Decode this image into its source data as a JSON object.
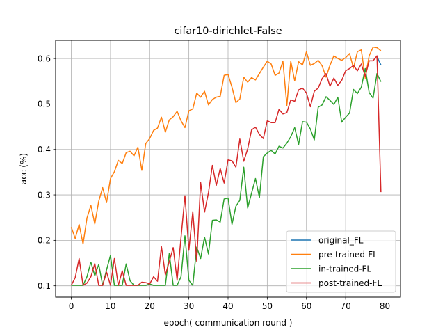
{
  "chart_data": {
    "type": "line",
    "title": "cifar10-dirichlet-False",
    "xlabel": "epoch( communication round )",
    "ylabel": "acc (%)",
    "xlim": [
      -4,
      84
    ],
    "ylim": [
      0.075,
      0.64
    ],
    "xticks": [
      0,
      10,
      20,
      30,
      40,
      50,
      60,
      70,
      80
    ],
    "yticks": [
      0.1,
      0.2,
      0.3,
      0.4,
      0.5,
      0.6
    ],
    "ytick_labels": [
      "0.1",
      "0.2",
      "0.3",
      "0.4",
      "0.5",
      "0.6"
    ],
    "grid": true,
    "legend_position": "lower-right",
    "series": [
      {
        "name": "original_FL",
        "color": "#1f77b4",
        "x": [
          78,
          79
        ],
        "y": [
          0.604,
          0.586
        ]
      },
      {
        "name": "pre-trained-FL",
        "color": "#ff7f0e",
        "x": [
          0,
          1,
          2,
          3,
          4,
          5,
          6,
          7,
          8,
          9,
          10,
          11,
          12,
          13,
          14,
          15,
          16,
          17,
          18,
          19,
          20,
          21,
          22,
          23,
          24,
          25,
          26,
          27,
          28,
          29,
          30,
          31,
          32,
          33,
          34,
          35,
          36,
          37,
          38,
          39,
          40,
          41,
          42,
          43,
          44,
          45,
          46,
          47,
          48,
          49,
          50,
          51,
          52,
          53,
          54,
          55,
          56,
          57,
          58,
          59,
          60,
          61,
          62,
          63,
          64,
          65,
          66,
          67,
          68,
          69,
          70,
          71,
          72,
          73,
          74,
          75,
          76,
          77,
          78,
          79
        ],
        "y": [
          0.229,
          0.204,
          0.235,
          0.192,
          0.249,
          0.277,
          0.236,
          0.286,
          0.316,
          0.283,
          0.336,
          0.351,
          0.376,
          0.369,
          0.393,
          0.396,
          0.386,
          0.405,
          0.354,
          0.413,
          0.424,
          0.442,
          0.447,
          0.471,
          0.438,
          0.465,
          0.472,
          0.484,
          0.463,
          0.448,
          0.485,
          0.489,
          0.524,
          0.515,
          0.528,
          0.498,
          0.51,
          0.515,
          0.517,
          0.563,
          0.565,
          0.537,
          0.503,
          0.511,
          0.559,
          0.548,
          0.558,
          0.553,
          0.567,
          0.581,
          0.594,
          0.588,
          0.563,
          0.568,
          0.594,
          0.497,
          0.594,
          0.551,
          0.593,
          0.586,
          0.615,
          0.585,
          0.589,
          0.596,
          0.584,
          0.559,
          0.585,
          0.606,
          0.6,
          0.596,
          0.602,
          0.611,
          0.579,
          0.615,
          0.619,
          0.557,
          0.606,
          0.625,
          0.624,
          0.617
        ]
      },
      {
        "name": "in-trained-FL",
        "color": "#2ca02c",
        "x": [
          0,
          1,
          2,
          3,
          4,
          5,
          6,
          7,
          8,
          9,
          10,
          11,
          12,
          13,
          14,
          15,
          16,
          17,
          18,
          19,
          20,
          21,
          22,
          23,
          24,
          25,
          26,
          27,
          28,
          29,
          30,
          31,
          32,
          33,
          34,
          35,
          36,
          37,
          38,
          39,
          40,
          41,
          42,
          43,
          44,
          45,
          46,
          47,
          48,
          49,
          50,
          51,
          52,
          53,
          54,
          55,
          56,
          57,
          58,
          59,
          60,
          61,
          62,
          63,
          64,
          65,
          66,
          67,
          68,
          69,
          70,
          71,
          72,
          73,
          74,
          75,
          76,
          77,
          78,
          79
        ],
        "y": [
          0.101,
          0.101,
          0.101,
          0.101,
          0.12,
          0.152,
          0.122,
          0.147,
          0.101,
          0.135,
          0.167,
          0.101,
          0.101,
          0.101,
          0.148,
          0.111,
          0.101,
          0.101,
          0.101,
          0.101,
          0.104,
          0.101,
          0.101,
          0.101,
          0.101,
          0.171,
          0.101,
          0.101,
          0.12,
          0.21,
          0.112,
          0.101,
          0.185,
          0.16,
          0.207,
          0.17,
          0.244,
          0.245,
          0.24,
          0.291,
          0.293,
          0.235,
          0.275,
          0.288,
          0.361,
          0.271,
          0.304,
          0.336,
          0.294,
          0.384,
          0.392,
          0.398,
          0.39,
          0.407,
          0.403,
          0.414,
          0.428,
          0.448,
          0.411,
          0.461,
          0.46,
          0.445,
          0.421,
          0.493,
          0.498,
          0.516,
          0.508,
          0.499,
          0.515,
          0.46,
          0.471,
          0.48,
          0.532,
          0.523,
          0.537,
          0.578,
          0.525,
          0.513,
          0.567,
          0.549
        ]
      },
      {
        "name": "post-trained-FL",
        "color": "#d62728",
        "x": [
          0,
          1,
          2,
          3,
          4,
          5,
          6,
          7,
          8,
          9,
          10,
          11,
          12,
          13,
          14,
          15,
          16,
          17,
          18,
          19,
          20,
          21,
          22,
          23,
          24,
          25,
          26,
          27,
          28,
          29,
          30,
          31,
          32,
          33,
          34,
          35,
          36,
          37,
          38,
          39,
          40,
          41,
          42,
          43,
          44,
          45,
          46,
          47,
          48,
          49,
          50,
          51,
          52,
          53,
          54,
          55,
          56,
          57,
          58,
          59,
          60,
          61,
          62,
          63,
          64,
          65,
          66,
          67,
          68,
          69,
          70,
          71,
          72,
          73,
          74,
          75,
          76,
          77,
          78,
          79
        ],
        "y": [
          0.101,
          0.118,
          0.16,
          0.101,
          0.106,
          0.12,
          0.149,
          0.101,
          0.101,
          0.13,
          0.101,
          0.16,
          0.101,
          0.133,
          0.101,
          0.101,
          0.101,
          0.101,
          0.108,
          0.107,
          0.104,
          0.12,
          0.11,
          0.186,
          0.124,
          0.153,
          0.184,
          0.112,
          0.206,
          0.298,
          0.178,
          0.263,
          0.154,
          0.327,
          0.262,
          0.305,
          0.365,
          0.321,
          0.358,
          0.326,
          0.377,
          0.375,
          0.361,
          0.423,
          0.374,
          0.401,
          0.443,
          0.449,
          0.433,
          0.424,
          0.463,
          0.459,
          0.459,
          0.488,
          0.478,
          0.481,
          0.509,
          0.506,
          0.531,
          0.535,
          0.524,
          0.494,
          0.528,
          0.535,
          0.556,
          0.567,
          0.539,
          0.557,
          0.541,
          0.552,
          0.573,
          0.578,
          0.585,
          0.573,
          0.588,
          0.561,
          0.595,
          0.595,
          0.606,
          0.306
        ]
      }
    ]
  }
}
